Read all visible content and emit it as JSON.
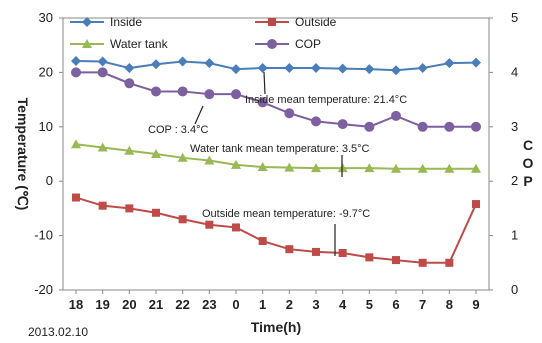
{
  "chart_data": {
    "type": "line",
    "x": [
      "18",
      "19",
      "20",
      "21",
      "22",
      "23",
      "0",
      "1",
      "2",
      "3",
      "4",
      "5",
      "6",
      "7",
      "8",
      "9"
    ],
    "xlabel": "Time(h)",
    "ylabel_left": "Temperature (℃)",
    "ylabel_right": "COP",
    "ylim_left": [
      -20,
      30
    ],
    "ylim_right": [
      0,
      5
    ],
    "yticks_left": [
      "-20",
      "-10",
      "0",
      "10",
      "20",
      "30"
    ],
    "yticks_right": [
      "0",
      "1",
      "2",
      "3",
      "4",
      "5"
    ],
    "grid": false,
    "legend_position": "top",
    "date_note": "2013.02.10",
    "series": [
      {
        "name": "Inside",
        "axis": "left",
        "color": "#4a7ebb",
        "marker": "diamond",
        "values": [
          22.1,
          22.0,
          20.8,
          21.5,
          22.0,
          21.7,
          20.6,
          20.8,
          20.8,
          20.8,
          20.7,
          20.6,
          20.4,
          20.8,
          21.7,
          21.8
        ]
      },
      {
        "name": "Outside",
        "axis": "left",
        "color": "#be4b48",
        "marker": "square",
        "values": [
          -3.0,
          -4.5,
          -5.0,
          -5.8,
          -7.0,
          -8.0,
          -8.5,
          -11.0,
          -12.5,
          -13.0,
          -13.2,
          -14.0,
          -14.5,
          -15.0,
          -15.0,
          -4.2
        ]
      },
      {
        "name": "Water tank",
        "axis": "left",
        "color": "#98b954",
        "marker": "triangle",
        "values": [
          6.8,
          6.2,
          5.6,
          5.0,
          4.3,
          3.8,
          3.0,
          2.6,
          2.5,
          2.4,
          2.4,
          2.4,
          2.3,
          2.3,
          2.3,
          2.3
        ]
      },
      {
        "name": "COP",
        "axis": "right",
        "color": "#7d60a0",
        "marker": "circle",
        "values": [
          4.0,
          4.0,
          3.8,
          3.65,
          3.65,
          3.6,
          3.6,
          3.45,
          3.25,
          3.1,
          3.05,
          3.0,
          3.2,
          3.0,
          3.0,
          3.0
        ]
      }
    ],
    "annotations": [
      {
        "text": "Inside mean temperature: 21.4°C"
      },
      {
        "text": "COP : 3.4°C"
      },
      {
        "text": "Water tank mean temperature: 3.5°C"
      },
      {
        "text": "Outside mean temperature: -9.7°C"
      }
    ]
  }
}
